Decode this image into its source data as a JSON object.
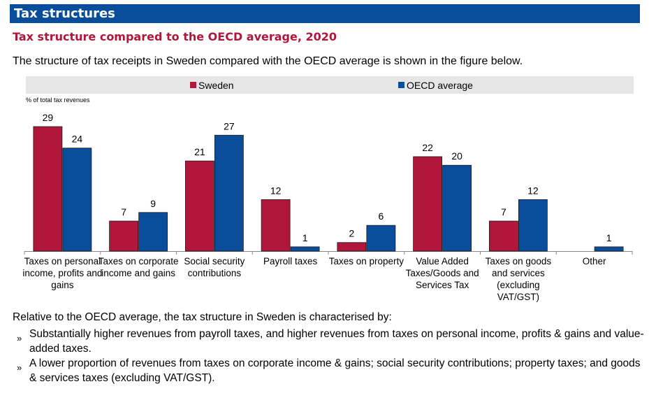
{
  "header": {
    "title": "Tax structures"
  },
  "subtitle": "Tax structure compared to the OECD average, 2020",
  "intro": "The structure of tax receipts in Sweden compared with the OECD average is shown in the figure below.",
  "summary": {
    "lead": "Relative to the OECD average, the tax structure in Sweden is characterised by:",
    "bullet_mark": "»",
    "bullets": [
      "Substantially higher revenues from payroll taxes, and higher revenues from taxes on personal income, profits & gains and value-added taxes.",
      "A lower proportion of revenues from taxes on corporate income & gains; social security contributions; property taxes; and goods & services taxes (excluding VAT/GST)."
    ]
  },
  "colors": {
    "header": "#0a4e9b",
    "subtitle": "#b0173a",
    "sweden": "#b0173a",
    "oecd": "#0a4e9b",
    "legend_bg": "#e6e6e6"
  },
  "chart_data": {
    "type": "bar",
    "ylabel": "% of total tax revenues",
    "legend_position": "top",
    "grid": false,
    "ylim": [
      0,
      30
    ],
    "categories": [
      [
        "Taxes on personal",
        "income, profits and",
        "gains"
      ],
      [
        "Taxes on corporate",
        "income and gains"
      ],
      [
        "Social security",
        "contributions"
      ],
      [
        "Payroll taxes"
      ],
      [
        "Taxes on property"
      ],
      [
        "Value Added",
        "Taxes/Goods and",
        "Services Tax"
      ],
      [
        "Taxes on goods",
        "and services",
        "(excluding",
        "VAT/GST)"
      ],
      [
        "Other"
      ]
    ],
    "series": [
      {
        "name": "Sweden",
        "color": "#b0173a",
        "values": [
          29,
          7,
          21,
          12,
          2,
          22,
          7,
          null
        ]
      },
      {
        "name": "OECD average",
        "color": "#0a4e9b",
        "values": [
          24,
          9,
          27,
          1,
          6,
          20,
          12,
          1
        ]
      }
    ]
  }
}
